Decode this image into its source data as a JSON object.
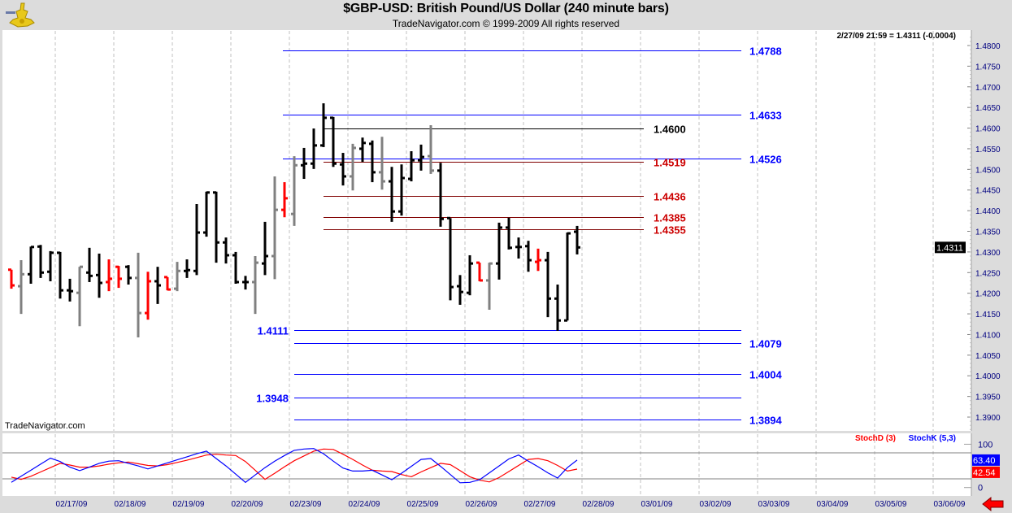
{
  "header": {
    "title": "$GBP-USD:  British Pound/US Dollar  (240 minute bars)",
    "subtitle": "TradeNavigator.com © 1999-2009 All rights reserved",
    "quote": "2/27/09 21:59 = 1.4311 (-0.0004)",
    "watermark": "TradeNavigator.com",
    "logo": "sextant-logo"
  },
  "colors": {
    "up": "#000000",
    "neutral": "#808080",
    "down": "#ff0000",
    "fib_blue": "#0000ff",
    "fib_red": "#cc0000",
    "stochK": "#0000ff",
    "stochD": "#ff0000",
    "last_price_bg": "#000000"
  },
  "chart_data": [
    {
      "type": "ohlc",
      "title": "$GBP-USD:  British Pound/US Dollar  (240 minute bars)",
      "ylim": [
        1.387,
        1.482
      ],
      "yticks": [
        "1.4800",
        "1.4750",
        "1.4700",
        "1.4650",
        "1.4600",
        "1.4550",
        "1.4500",
        "1.4450",
        "1.4400",
        "1.4350",
        "1.4300",
        "1.4250",
        "1.4200",
        "1.4150",
        "1.4100",
        "1.4050",
        "1.4000",
        "1.3950",
        "1.3900"
      ],
      "xticks": [
        "02/17/09",
        "02/18/09",
        "02/19/09",
        "02/20/09",
        "02/23/09",
        "02/24/09",
        "02/25/09",
        "02/26/09",
        "02/27/09",
        "02/28/09",
        "03/01/09",
        "03/02/09",
        "03/03/09",
        "03/04/09",
        "03/05/09",
        "03/06/09"
      ],
      "bars_per_day": 6,
      "last_price": "1.4311",
      "bars": [
        {
          "o": 1.4257,
          "h": 1.4257,
          "l": 1.4211,
          "c": 1.4219,
          "color": "red"
        },
        {
          "o": 1.4217,
          "h": 1.428,
          "l": 1.415,
          "c": 1.4246,
          "color": "gray"
        },
        {
          "o": 1.4246,
          "h": 1.4313,
          "l": 1.4223,
          "c": 1.4312,
          "color": "black"
        },
        {
          "o": 1.4313,
          "h": 1.4317,
          "l": 1.4237,
          "c": 1.425,
          "color": "black"
        },
        {
          "o": 1.4252,
          "h": 1.4302,
          "l": 1.4229,
          "c": 1.4298,
          "color": "black"
        },
        {
          "o": 1.4298,
          "h": 1.43,
          "l": 1.4187,
          "c": 1.4207,
          "color": "black"
        },
        {
          "o": 1.4207,
          "h": 1.4235,
          "l": 1.418,
          "c": 1.4205,
          "color": "black"
        },
        {
          "o": 1.4201,
          "h": 1.4264,
          "l": 1.412,
          "c": 1.4264,
          "color": "gray"
        },
        {
          "o": 1.425,
          "h": 1.431,
          "l": 1.4227,
          "c": 1.4242,
          "color": "black"
        },
        {
          "o": 1.4244,
          "h": 1.4296,
          "l": 1.4189,
          "c": 1.4225,
          "color": "black"
        },
        {
          "o": 1.4227,
          "h": 1.4282,
          "l": 1.4205,
          "c": 1.4235,
          "color": "red"
        },
        {
          "o": 1.4264,
          "h": 1.4266,
          "l": 1.4213,
          "c": 1.4235,
          "color": "red"
        },
        {
          "o": 1.4264,
          "h": 1.4268,
          "l": 1.4221,
          "c": 1.4237,
          "color": "black"
        },
        {
          "o": 1.4237,
          "h": 1.4298,
          "l": 1.4093,
          "c": 1.4152,
          "color": "gray"
        },
        {
          "o": 1.4152,
          "h": 1.4252,
          "l": 1.4136,
          "c": 1.4229,
          "color": "red"
        },
        {
          "o": 1.4229,
          "h": 1.4264,
          "l": 1.4174,
          "c": 1.4219,
          "color": "black"
        },
        {
          "o": 1.4239,
          "h": 1.4239,
          "l": 1.4207,
          "c": 1.4209,
          "color": "red"
        },
        {
          "o": 1.4211,
          "h": 1.4276,
          "l": 1.4205,
          "c": 1.4254,
          "color": "gray"
        },
        {
          "o": 1.4254,
          "h": 1.4282,
          "l": 1.4237,
          "c": 1.4256,
          "color": "black"
        },
        {
          "o": 1.4254,
          "h": 1.4416,
          "l": 1.4244,
          "c": 1.4347,
          "color": "black"
        },
        {
          "o": 1.4347,
          "h": 1.4446,
          "l": 1.4337,
          "c": 1.4444,
          "color": "black"
        },
        {
          "o": 1.4444,
          "h": 1.4446,
          "l": 1.4274,
          "c": 1.4323,
          "color": "black"
        },
        {
          "o": 1.4323,
          "h": 1.4335,
          "l": 1.4272,
          "c": 1.4292,
          "color": "black"
        },
        {
          "o": 1.4292,
          "h": 1.43,
          "l": 1.4223,
          "c": 1.4227,
          "color": "black"
        },
        {
          "o": 1.4227,
          "h": 1.4242,
          "l": 1.4209,
          "c": 1.4227,
          "color": "black"
        },
        {
          "o": 1.4227,
          "h": 1.429,
          "l": 1.415,
          "c": 1.4274,
          "color": "gray"
        },
        {
          "o": 1.4272,
          "h": 1.4373,
          "l": 1.4244,
          "c": 1.429,
          "color": "black"
        },
        {
          "o": 1.429,
          "h": 1.4483,
          "l": 1.4234,
          "c": 1.4402,
          "color": "gray"
        },
        {
          "o": 1.4402,
          "h": 1.4469,
          "l": 1.4384,
          "c": 1.443,
          "color": "red"
        },
        {
          "o": 1.4392,
          "h": 1.4532,
          "l": 1.4363,
          "c": 1.451,
          "color": "gray"
        },
        {
          "o": 1.451,
          "h": 1.4552,
          "l": 1.4477,
          "c": 1.4514,
          "color": "black"
        },
        {
          "o": 1.4514,
          "h": 1.4599,
          "l": 1.4501,
          "c": 1.4558,
          "color": "black"
        },
        {
          "o": 1.4558,
          "h": 1.466,
          "l": 1.4554,
          "c": 1.4625,
          "color": "black"
        },
        {
          "o": 1.4625,
          "h": 1.4627,
          "l": 1.4506,
          "c": 1.4514,
          "color": "black"
        },
        {
          "o": 1.4512,
          "h": 1.454,
          "l": 1.4461,
          "c": 1.4483,
          "color": "black"
        },
        {
          "o": 1.4483,
          "h": 1.4562,
          "l": 1.4449,
          "c": 1.4552,
          "color": "gray"
        },
        {
          "o": 1.455,
          "h": 1.4577,
          "l": 1.4518,
          "c": 1.4564,
          "color": "black"
        },
        {
          "o": 1.4562,
          "h": 1.457,
          "l": 1.4469,
          "c": 1.4493,
          "color": "black"
        },
        {
          "o": 1.4493,
          "h": 1.4579,
          "l": 1.4451,
          "c": 1.4471,
          "color": "gray"
        },
        {
          "o": 1.4471,
          "h": 1.4506,
          "l": 1.4373,
          "c": 1.4398,
          "color": "black"
        },
        {
          "o": 1.4398,
          "h": 1.4512,
          "l": 1.4388,
          "c": 1.4479,
          "color": "black"
        },
        {
          "o": 1.4477,
          "h": 1.4544,
          "l": 1.4471,
          "c": 1.4522,
          "color": "black"
        },
        {
          "o": 1.4522,
          "h": 1.456,
          "l": 1.4497,
          "c": 1.453,
          "color": "black"
        },
        {
          "o": 1.4532,
          "h": 1.4607,
          "l": 1.4489,
          "c": 1.4497,
          "color": "gray"
        },
        {
          "o": 1.4497,
          "h": 1.4516,
          "l": 1.4361,
          "c": 1.438,
          "color": "black"
        },
        {
          "o": 1.4382,
          "h": 1.4382,
          "l": 1.4183,
          "c": 1.4215,
          "color": "black"
        },
        {
          "o": 1.4217,
          "h": 1.4244,
          "l": 1.4172,
          "c": 1.4203,
          "color": "black"
        },
        {
          "o": 1.4201,
          "h": 1.4292,
          "l": 1.4195,
          "c": 1.4272,
          "color": "black"
        },
        {
          "o": 1.4274,
          "h": 1.4274,
          "l": 1.4229,
          "c": 1.4231,
          "color": "red"
        },
        {
          "o": 1.4231,
          "h": 1.4274,
          "l": 1.416,
          "c": 1.4272,
          "color": "gray"
        },
        {
          "o": 1.4272,
          "h": 1.4371,
          "l": 1.4233,
          "c": 1.4359,
          "color": "black"
        },
        {
          "o": 1.4359,
          "h": 1.4383,
          "l": 1.4306,
          "c": 1.431,
          "color": "black"
        },
        {
          "o": 1.4312,
          "h": 1.4335,
          "l": 1.4284,
          "c": 1.4312,
          "color": "black"
        },
        {
          "o": 1.4314,
          "h": 1.4327,
          "l": 1.4252,
          "c": 1.428,
          "color": "black"
        },
        {
          "o": 1.4276,
          "h": 1.4308,
          "l": 1.4254,
          "c": 1.428,
          "color": "red"
        },
        {
          "o": 1.428,
          "h": 1.43,
          "l": 1.4142,
          "c": 1.4187,
          "color": "black"
        },
        {
          "o": 1.4187,
          "h": 1.4221,
          "l": 1.4109,
          "c": 1.4134,
          "color": "black"
        },
        {
          "o": 1.4134,
          "h": 1.4347,
          "l": 1.4134,
          "c": 1.4345,
          "color": "black"
        },
        {
          "o": 1.4349,
          "h": 1.4363,
          "l": 1.4294,
          "c": 1.4311,
          "color": "black"
        }
      ],
      "levels": [
        {
          "value": "1.4788",
          "color": "blue",
          "label_side": "right",
          "span": "wide"
        },
        {
          "value": "1.4633",
          "color": "blue",
          "label_side": "right",
          "span": "wide"
        },
        {
          "value": "1.4600",
          "color": "black",
          "label_side": "right",
          "span": "short"
        },
        {
          "value": "1.4526",
          "color": "blue",
          "label_side": "right",
          "span": "wide"
        },
        {
          "value": "1.4519",
          "color": "red",
          "label_side": "right",
          "span": "short"
        },
        {
          "value": "1.4436",
          "color": "red",
          "label_side": "right",
          "span": "short"
        },
        {
          "value": "1.4385",
          "color": "red",
          "label_side": "right",
          "span": "short"
        },
        {
          "value": "1.4355",
          "color": "red",
          "label_side": "right",
          "span": "short"
        },
        {
          "value": "1.4111",
          "color": "blue",
          "label_side": "left",
          "span": "low"
        },
        {
          "value": "1.4079",
          "color": "blue",
          "label_side": "right",
          "span": "low"
        },
        {
          "value": "1.4004",
          "color": "blue",
          "label_side": "right",
          "span": "low"
        },
        {
          "value": "1.3948",
          "color": "blue",
          "label_side": "left",
          "span": "low"
        },
        {
          "value": "1.3894",
          "color": "blue",
          "label_side": "right",
          "span": "low"
        }
      ]
    },
    {
      "type": "line",
      "ylim": [
        0,
        100
      ],
      "yticks": [
        "100",
        "0"
      ],
      "reference_lines": [
        80,
        20
      ],
      "legend": "top-right",
      "series": [
        {
          "name": "StochD (3)",
          "color": "red",
          "last_label": "42.54",
          "values": [
            24,
            19,
            26,
            36,
            46,
            56,
            52,
            47,
            47,
            50,
            54,
            57,
            59,
            55,
            51,
            50,
            53,
            58,
            63,
            69,
            75,
            77,
            75,
            74,
            60,
            40,
            19,
            33,
            48,
            62,
            73,
            84,
            89,
            88,
            77,
            65,
            52,
            40,
            38,
            37,
            30,
            25,
            36,
            46,
            56,
            53,
            39,
            25,
            17,
            13,
            23,
            37,
            51,
            65,
            67,
            62,
            51,
            38,
            42.54
          ]
        },
        {
          "name": "StochK (5,3)",
          "color": "blue",
          "last_label": "63.40",
          "values": [
            12,
            26,
            40,
            54,
            68,
            60,
            47,
            39,
            47,
            56,
            61,
            62,
            56,
            50,
            43,
            50,
            57,
            64,
            71,
            78,
            84,
            67,
            50,
            31,
            12,
            29,
            46,
            61,
            74,
            86,
            89,
            90,
            78,
            61,
            45,
            38,
            38,
            40,
            29,
            18,
            33,
            49,
            65,
            67,
            49,
            30,
            11,
            12,
            18,
            34,
            50,
            66,
            75,
            61,
            48,
            34,
            22,
            46,
            63.4
          ]
        }
      ]
    }
  ]
}
